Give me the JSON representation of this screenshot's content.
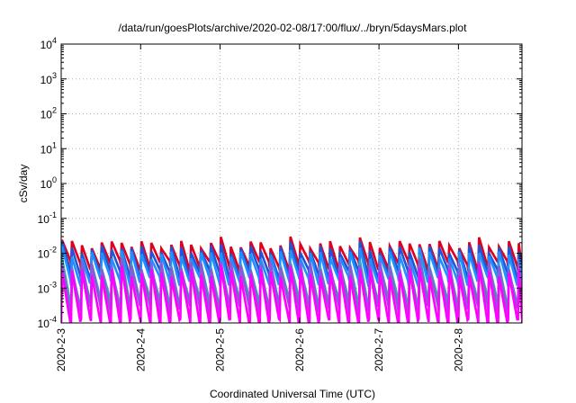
{
  "chart_data": {
    "type": "line",
    "title": "/data/run/goesPlots/archive/2020-02-08/17:00/flux/../bryn/5daysMars.plot",
    "xlabel": "Coordinated Universal Time (UTC)",
    "ylabel": "cSv/day",
    "y_scale": "log",
    "ylim": [
      0.0001,
      10000
    ],
    "xlim_days_relative": [
      0,
      5.8
    ],
    "grid": true,
    "legend": "none",
    "x_tick_labels": [
      "2020-2-3",
      "2020-2-4",
      "2020-2-5",
      "2020-2-6",
      "2020-2-7",
      "2020-2-8"
    ],
    "x_ticks": [
      0,
      1,
      2,
      3,
      4,
      5
    ],
    "y_ticks": [
      {
        "value": 0.0001,
        "base": "10",
        "exp": "-4"
      },
      {
        "value": 0.001,
        "base": "10",
        "exp": "-3"
      },
      {
        "value": 0.01,
        "base": "10",
        "exp": "-2"
      },
      {
        "value": 0.1,
        "base": "10",
        "exp": "-1"
      },
      {
        "value": 1,
        "base": "10",
        "exp": "0"
      },
      {
        "value": 10,
        "base": "10",
        "exp": "1"
      },
      {
        "value": 100,
        "base": "10",
        "exp": "2"
      },
      {
        "value": 1000,
        "base": "10",
        "exp": "3"
      },
      {
        "value": 10000,
        "base": "10",
        "exp": "4"
      }
    ],
    "sawtooth": {
      "period_days": 0.125,
      "jump_days": [
        0,
        0.75,
        2.0,
        2.9,
        3.7,
        4.55,
        5.3
      ]
    },
    "series": [
      {
        "color": "#e0001e",
        "peak": 0.018,
        "trough": 0.0045,
        "jump_peak": 0.024
      },
      {
        "color": "#2255d6",
        "peak": 0.013,
        "trough": 0.0025,
        "jump_peak": 0.018
      },
      {
        "color": "#1e90ff",
        "peak": 0.009,
        "trough": 0.0016,
        "jump_peak": 0.013
      },
      {
        "color": "#3aa6b0",
        "peak": 0.004,
        "trough": 0.0004,
        "jump_peak": 0.007
      },
      {
        "color": "#8a5ad8",
        "peak": 0.0045,
        "trough": 0.00025,
        "jump_peak": 0.006
      },
      {
        "color": "#ff00ff",
        "peak": 0.0028,
        "trough": 0.0001,
        "jump_peak": 0.004
      }
    ]
  }
}
